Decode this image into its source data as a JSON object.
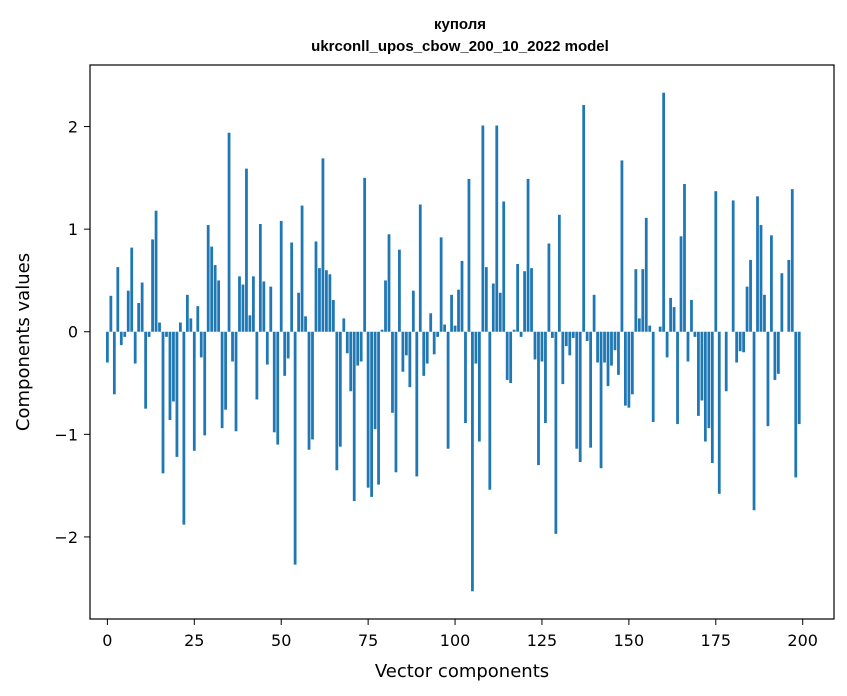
{
  "chart_data": {
    "type": "bar",
    "title_line1": "куполя",
    "title_line2": "ukrconll_upos_cbow_200_10_2022 model",
    "xlabel": "Vector components",
    "ylabel": "Components values",
    "xlim": [
      -5,
      209
    ],
    "ylim": [
      -2.8,
      2.6
    ],
    "xticks": [
      0,
      25,
      50,
      75,
      100,
      125,
      150,
      175,
      200
    ],
    "yticks": [
      -2,
      -1,
      0,
      1,
      2
    ],
    "ytick_labels": [
      "−2",
      "−1",
      "0",
      "1",
      "2"
    ],
    "bar_color": "#1f77b4",
    "grid": false,
    "legend": "none",
    "values": [
      -0.3,
      0.35,
      -0.61,
      0.63,
      -0.13,
      -0.05,
      0.4,
      0.82,
      -0.31,
      0.28,
      0.48,
      -0.75,
      -0.05,
      0.9,
      1.18,
      0.09,
      -1.38,
      -0.05,
      -0.86,
      -0.68,
      -1.22,
      0.09,
      -1.88,
      0.36,
      0.13,
      -1.16,
      0.25,
      -0.25,
      -1.01,
      1.04,
      0.83,
      0.65,
      0.5,
      -0.94,
      -0.76,
      1.94,
      -0.29,
      -0.97,
      0.54,
      0.46,
      1.59,
      0.16,
      0.54,
      -0.66,
      1.05,
      0.49,
      -0.32,
      0.44,
      -0.98,
      -1.1,
      1.08,
      -0.43,
      -0.26,
      0.87,
      -2.27,
      0.38,
      1.23,
      0.15,
      -1.15,
      -1.05,
      0.88,
      0.62,
      1.69,
      0.6,
      0.56,
      0.31,
      -1.35,
      -1.12,
      0.13,
      -0.21,
      -0.58,
      -1.65,
      -0.33,
      -0.29,
      1.5,
      -1.52,
      -1.61,
      -0.95,
      -1.49,
      0.02,
      0.5,
      0.95,
      -0.79,
      -1.37,
      0.8,
      -0.39,
      -0.23,
      -0.54,
      0.4,
      -1.41,
      1.24,
      -0.43,
      -0.31,
      0.18,
      -0.22,
      -0.05,
      0.92,
      0.07,
      -1.14,
      0.36,
      0.06,
      0.41,
      0.69,
      -0.89,
      1.49,
      -2.53,
      -0.31,
      -1.07,
      2.01,
      0.63,
      -1.54,
      0.47,
      2.01,
      0.38,
      1.27,
      -0.47,
      -0.5,
      0.02,
      0.66,
      -0.05,
      0.59,
      1.49,
      0.62,
      -0.27,
      -1.3,
      -0.29,
      -0.89,
      0.86,
      -0.06,
      -1.97,
      1.14,
      -0.51,
      -0.14,
      -0.23,
      -0.06,
      -1.14,
      -1.27,
      2.21,
      -0.09,
      -1.13,
      0.36,
      -0.3,
      -1.33,
      -0.3,
      -0.53,
      -0.33,
      -0.18,
      -0.42,
      1.67,
      -0.72,
      -0.74,
      -0.61,
      0.61,
      0.13,
      0.61,
      1.11,
      0.06,
      -0.88,
      0.0,
      0.05,
      2.33,
      -0.25,
      0.33,
      0.24,
      -0.9,
      0.93,
      1.44,
      -0.29,
      0.31,
      -0.05,
      -0.82,
      -0.67,
      -1.07,
      -0.94,
      -1.28,
      1.37,
      -1.58,
      0.0,
      -0.58,
      0.0,
      1.28,
      -0.3,
      -0.19,
      -0.2,
      0.44,
      0.7,
      -1.74,
      1.32,
      1.04,
      0.36,
      -0.92,
      0.94,
      -0.47,
      -0.41,
      0.57,
      0.0,
      0.7,
      1.39,
      -1.42,
      -0.9
    ]
  }
}
